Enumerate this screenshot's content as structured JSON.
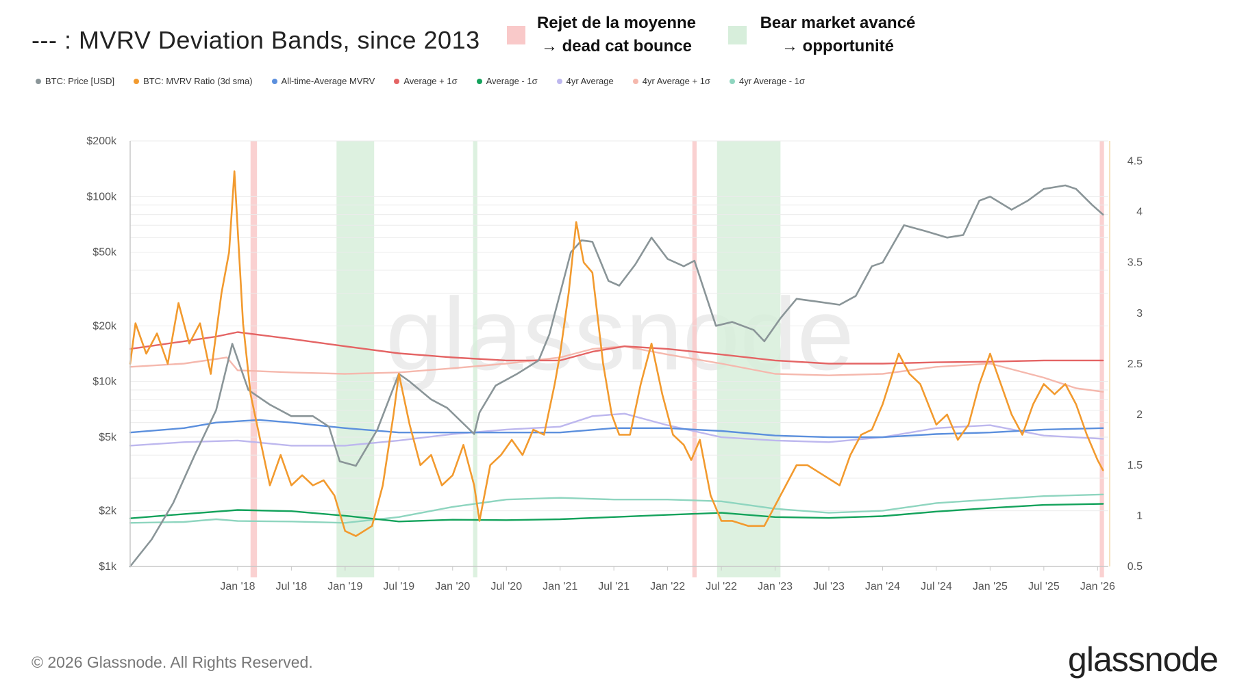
{
  "header": {
    "title": "--- : MVRV Deviation Bands, since 2013",
    "key_red_line1": "Rejet de la moyenne",
    "key_red_line2": "→ dead cat bounce",
    "key_green_line1": "Bear market avancé",
    "key_green_line2": "→ opportunité",
    "key_red_color": "#f9c9c9",
    "key_green_color": "#d7eedb"
  },
  "legend": [
    {
      "label": "BTC: Price [USD]",
      "color": "#8a9598"
    },
    {
      "label": "BTC: MVRV Ratio (3d sma)",
      "color": "#f29a2e"
    },
    {
      "label": "All-time-Average MVRV",
      "color": "#5b8fdd"
    },
    {
      "label": "Average + 1σ",
      "color": "#e46464"
    },
    {
      "label": "Average - 1σ",
      "color": "#13a25b"
    },
    {
      "label": "4yr Average",
      "color": "#bdb7ee"
    },
    {
      "label": "4yr Average + 1σ",
      "color": "#f5b8ad"
    },
    {
      "label": "4yr Average - 1σ",
      "color": "#8ed5bf"
    }
  ],
  "footer": {
    "copyright": "© 2026 Glassnode. All Rights Reserved.",
    "brand": "glassnode",
    "watermark": "glassnode"
  },
  "chart_data": {
    "type": "line",
    "title": "--- : MVRV Deviation Bands, since 2013",
    "x_range": [
      2017.0,
      2026.1
    ],
    "x_ticks": [
      {
        "label": "Jan '18",
        "x": 2018.0
      },
      {
        "label": "Jul '18",
        "x": 2018.5
      },
      {
        "label": "Jan '19",
        "x": 2019.0
      },
      {
        "label": "Jul '19",
        "x": 2019.5
      },
      {
        "label": "Jan '20",
        "x": 2020.0
      },
      {
        "label": "Jul '20",
        "x": 2020.5
      },
      {
        "label": "Jan '21",
        "x": 2021.0
      },
      {
        "label": "Jul '21",
        "x": 2021.5
      },
      {
        "label": "Jan '22",
        "x": 2022.0
      },
      {
        "label": "Jul '22",
        "x": 2022.5
      },
      {
        "label": "Jan '23",
        "x": 2023.0
      },
      {
        "label": "Jul '23",
        "x": 2023.5
      },
      {
        "label": "Jan '24",
        "x": 2024.0
      },
      {
        "label": "Jul '24",
        "x": 2024.5
      },
      {
        "label": "Jan '25",
        "x": 2025.0
      },
      {
        "label": "Jul '25",
        "x": 2025.5
      },
      {
        "label": "Jan '26",
        "x": 2026.0
      }
    ],
    "y_left": {
      "scale": "log",
      "range": [
        1000,
        200000
      ],
      "ticks": [
        {
          "label": "$1k",
          "v": 1000
        },
        {
          "label": "$2k",
          "v": 2000
        },
        {
          "label": "$5k",
          "v": 5000
        },
        {
          "label": "$10k",
          "v": 10000
        },
        {
          "label": "$20k",
          "v": 20000
        },
        {
          "label": "$50k",
          "v": 50000
        },
        {
          "label": "$100k",
          "v": 100000
        },
        {
          "label": "$200k",
          "v": 200000
        }
      ]
    },
    "y_right": {
      "scale": "linear",
      "range": [
        0.5,
        4.7
      ],
      "ticks": [
        {
          "label": "0.5",
          "v": 0.5
        },
        {
          "label": "1",
          "v": 1
        },
        {
          "label": "1.5",
          "v": 1.5
        },
        {
          "label": "2",
          "v": 2
        },
        {
          "label": "2.5",
          "v": 2.5
        },
        {
          "label": "3",
          "v": 3
        },
        {
          "label": "3.5",
          "v": 3.5
        },
        {
          "label": "4",
          "v": 4
        },
        {
          "label": "4.5",
          "v": 4.5
        }
      ]
    },
    "highlight_bands": [
      {
        "kind": "red",
        "from": 2018.12,
        "to": 2018.18
      },
      {
        "kind": "green",
        "from": 2018.92,
        "to": 2019.27
      },
      {
        "kind": "green",
        "from": 2020.19,
        "to": 2020.23
      },
      {
        "kind": "red",
        "from": 2022.23,
        "to": 2022.27
      },
      {
        "kind": "green",
        "from": 2022.46,
        "to": 2023.05
      },
      {
        "kind": "red",
        "from": 2026.02,
        "to": 2026.06
      }
    ],
    "series": [
      {
        "name": "BTC: Price [USD]",
        "axis": "left",
        "color": "#8a9598",
        "x": [
          2017.0,
          2017.2,
          2017.4,
          2017.6,
          2017.8,
          2017.95,
          2018.1,
          2018.3,
          2018.5,
          2018.7,
          2018.85,
          2018.95,
          2019.1,
          2019.3,
          2019.5,
          2019.6,
          2019.8,
          2019.95,
          2020.2,
          2020.25,
          2020.4,
          2020.6,
          2020.8,
          2020.9,
          2021.0,
          2021.1,
          2021.2,
          2021.3,
          2021.45,
          2021.55,
          2021.7,
          2021.85,
          2022.0,
          2022.15,
          2022.25,
          2022.35,
          2022.45,
          2022.6,
          2022.8,
          2022.9,
          2023.05,
          2023.2,
          2023.4,
          2023.6,
          2023.75,
          2023.9,
          2024.0,
          2024.2,
          2024.4,
          2024.6,
          2024.75,
          2024.9,
          2025.0,
          2025.2,
          2025.35,
          2025.5,
          2025.7,
          2025.8,
          2025.95,
          2026.05
        ],
        "values": [
          1000,
          1400,
          2200,
          4000,
          7000,
          16000,
          9000,
          7500,
          6500,
          6500,
          5700,
          3700,
          3500,
          5500,
          11000,
          10000,
          8000,
          7200,
          5200,
          6800,
          9500,
          11000,
          13000,
          18000,
          30000,
          50000,
          58000,
          57000,
          35000,
          33000,
          43000,
          60000,
          46000,
          42000,
          45000,
          30000,
          20000,
          21000,
          19000,
          16500,
          22000,
          28000,
          27000,
          26000,
          29000,
          42000,
          44000,
          70000,
          65000,
          60000,
          62000,
          95000,
          100000,
          85000,
          95000,
          110000,
          115000,
          110000,
          90000,
          80000
        ]
      },
      {
        "name": "BTC: MVRV Ratio (3d sma)",
        "axis": "right",
        "color": "#f29a2e",
        "x": [
          2017.0,
          2017.05,
          2017.15,
          2017.25,
          2017.35,
          2017.45,
          2017.55,
          2017.65,
          2017.75,
          2017.85,
          2017.92,
          2017.97,
          2018.05,
          2018.12,
          2018.2,
          2018.3,
          2018.4,
          2018.5,
          2018.6,
          2018.7,
          2018.8,
          2018.9,
          2019.0,
          2019.1,
          2019.25,
          2019.35,
          2019.45,
          2019.5,
          2019.6,
          2019.7,
          2019.8,
          2019.9,
          2020.0,
          2020.1,
          2020.2,
          2020.25,
          2020.35,
          2020.45,
          2020.55,
          2020.65,
          2020.75,
          2020.85,
          2020.95,
          2021.0,
          2021.08,
          2021.15,
          2021.22,
          2021.3,
          2021.4,
          2021.48,
          2021.55,
          2021.65,
          2021.75,
          2021.85,
          2021.95,
          2022.05,
          2022.15,
          2022.22,
          2022.3,
          2022.4,
          2022.5,
          2022.6,
          2022.75,
          2022.9,
          2023.0,
          2023.1,
          2023.2,
          2023.3,
          2023.45,
          2023.6,
          2023.7,
          2023.8,
          2023.9,
          2024.0,
          2024.15,
          2024.25,
          2024.35,
          2024.5,
          2024.6,
          2024.7,
          2024.8,
          2024.9,
          2025.0,
          2025.1,
          2025.2,
          2025.3,
          2025.4,
          2025.5,
          2025.6,
          2025.7,
          2025.8,
          2025.9,
          2026.0,
          2026.05
        ],
        "values": [
          2.5,
          2.9,
          2.6,
          2.8,
          2.5,
          3.1,
          2.7,
          2.9,
          2.4,
          3.2,
          3.6,
          4.4,
          2.9,
          2.2,
          1.8,
          1.3,
          1.6,
          1.3,
          1.4,
          1.3,
          1.35,
          1.2,
          0.85,
          0.8,
          0.9,
          1.3,
          2.0,
          2.4,
          1.9,
          1.5,
          1.6,
          1.3,
          1.4,
          1.7,
          1.3,
          0.95,
          1.5,
          1.6,
          1.75,
          1.6,
          1.85,
          1.8,
          2.3,
          2.6,
          3.2,
          3.9,
          3.5,
          3.4,
          2.5,
          2.0,
          1.8,
          1.8,
          2.3,
          2.7,
          2.2,
          1.8,
          1.7,
          1.55,
          1.75,
          1.2,
          0.95,
          0.95,
          0.9,
          0.9,
          1.1,
          1.3,
          1.5,
          1.5,
          1.4,
          1.3,
          1.6,
          1.8,
          1.85,
          2.1,
          2.6,
          2.4,
          2.3,
          1.9,
          2.0,
          1.75,
          1.9,
          2.3,
          2.6,
          2.3,
          2.0,
          1.8,
          2.1,
          2.3,
          2.2,
          2.3,
          2.1,
          1.8,
          1.55,
          1.45
        ]
      },
      {
        "name": "All-time-Average MVRV",
        "axis": "left",
        "color": "#5b8fdd",
        "x": [
          2017.0,
          2017.5,
          2017.8,
          2018.2,
          2018.5,
          2019.0,
          2019.5,
          2020.0,
          2020.5,
          2021.0,
          2021.5,
          2022.0,
          2022.5,
          2023.0,
          2023.5,
          2024.0,
          2024.5,
          2025.0,
          2025.5,
          2026.05
        ],
        "values": [
          5300,
          5600,
          6000,
          6200,
          6000,
          5600,
          5300,
          5300,
          5300,
          5300,
          5600,
          5600,
          5400,
          5100,
          5000,
          5000,
          5200,
          5300,
          5500,
          5600
        ]
      },
      {
        "name": "Average + 1σ",
        "axis": "left",
        "color": "#e46464",
        "x": [
          2017.0,
          2017.5,
          2017.8,
          2018.0,
          2018.5,
          2019.0,
          2019.5,
          2020.0,
          2020.5,
          2021.0,
          2021.3,
          2021.6,
          2022.0,
          2022.5,
          2023.0,
          2023.5,
          2024.0,
          2024.5,
          2025.0,
          2025.5,
          2026.05
        ],
        "values": [
          15000,
          16500,
          17500,
          18500,
          17000,
          15500,
          14200,
          13500,
          13000,
          13000,
          14500,
          15500,
          15000,
          14000,
          13000,
          12500,
          12500,
          12700,
          12800,
          13000,
          13000
        ]
      },
      {
        "name": "Average - 1σ",
        "axis": "left",
        "color": "#13a25b",
        "x": [
          2017.0,
          2017.5,
          2018.0,
          2018.5,
          2019.0,
          2019.5,
          2020.0,
          2020.5,
          2021.0,
          2021.5,
          2022.0,
          2022.5,
          2023.0,
          2023.5,
          2024.0,
          2024.5,
          2025.0,
          2025.5,
          2026.05
        ],
        "values": [
          1820,
          1920,
          2020,
          1990,
          1880,
          1750,
          1790,
          1780,
          1800,
          1850,
          1900,
          1950,
          1850,
          1830,
          1870,
          1980,
          2070,
          2150,
          2180
        ]
      },
      {
        "name": "4yr Average",
        "axis": "left",
        "color": "#bdb7ee",
        "x": [
          2017.0,
          2017.5,
          2018.0,
          2018.5,
          2019.0,
          2019.5,
          2020.0,
          2020.5,
          2021.0,
          2021.3,
          2021.6,
          2022.0,
          2022.5,
          2023.0,
          2023.5,
          2024.0,
          2024.5,
          2025.0,
          2025.5,
          2026.05
        ],
        "values": [
          4500,
          4700,
          4800,
          4500,
          4500,
          4800,
          5200,
          5500,
          5700,
          6500,
          6700,
          5800,
          5000,
          4800,
          4700,
          5000,
          5600,
          5800,
          5100,
          4900
        ]
      },
      {
        "name": "4yr Average + 1σ",
        "axis": "left",
        "color": "#f5b8ad",
        "x": [
          2017.0,
          2017.5,
          2017.9,
          2018.0,
          2018.5,
          2019.0,
          2019.5,
          2020.0,
          2020.5,
          2021.0,
          2021.3,
          2021.6,
          2022.0,
          2022.5,
          2023.0,
          2023.5,
          2024.0,
          2024.5,
          2025.0,
          2025.5,
          2025.8,
          2026.05
        ],
        "values": [
          12000,
          12500,
          13500,
          11500,
          11200,
          11000,
          11200,
          11800,
          12500,
          13500,
          15000,
          15500,
          14000,
          12500,
          11000,
          10800,
          11000,
          12000,
          12500,
          10500,
          9200,
          8800
        ]
      },
      {
        "name": "4yr Average - 1σ",
        "axis": "left",
        "color": "#8ed5bf",
        "x": [
          2017.0,
          2017.5,
          2017.8,
          2018.0,
          2018.5,
          2019.0,
          2019.5,
          2020.0,
          2020.5,
          2021.0,
          2021.5,
          2022.0,
          2022.5,
          2023.0,
          2023.5,
          2024.0,
          2024.5,
          2025.0,
          2025.5,
          2026.05
        ],
        "values": [
          1720,
          1740,
          1800,
          1760,
          1750,
          1720,
          1850,
          2100,
          2300,
          2350,
          2300,
          2300,
          2250,
          2050,
          1950,
          2000,
          2200,
          2300,
          2400,
          2450
        ]
      }
    ]
  }
}
